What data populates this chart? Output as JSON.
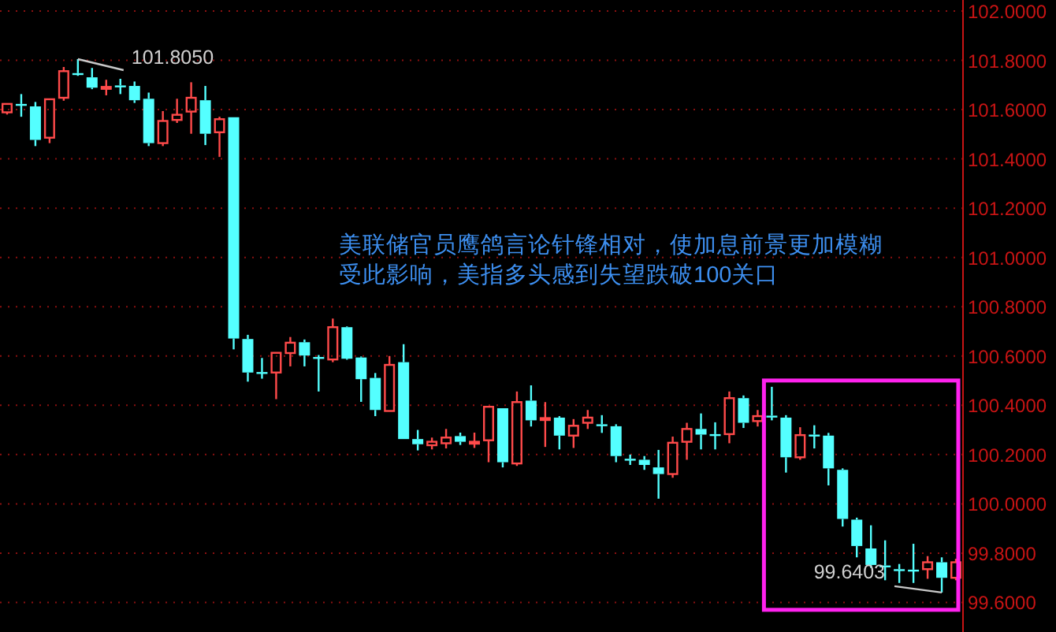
{
  "chart_data": {
    "type": "candlestick",
    "categories": [
      null,
      null,
      null,
      null,
      null,
      null,
      null,
      null,
      null,
      null,
      null,
      null,
      null,
      null,
      null,
      null,
      null,
      null,
      null,
      null,
      null,
      null,
      null,
      null,
      null,
      null,
      null,
      null,
      null,
      null,
      null,
      null,
      null,
      null,
      null,
      null,
      null,
      null,
      null,
      null,
      null,
      null,
      null,
      null,
      null,
      null,
      null,
      null,
      null,
      null,
      null,
      null,
      null,
      null,
      null,
      null,
      null,
      null,
      null,
      null,
      null,
      null,
      null,
      null,
      null,
      null,
      null,
      null
    ],
    "ohlc": [
      [
        101.589,
        101.623,
        101.58,
        101.623
      ],
      [
        101.623,
        101.663,
        101.571,
        101.62
      ],
      [
        101.613,
        101.631,
        101.452,
        101.477
      ],
      [
        101.486,
        101.642,
        101.464,
        101.642
      ],
      [
        101.648,
        101.773,
        101.636,
        101.756
      ],
      [
        101.748,
        101.805,
        101.737,
        101.742
      ],
      [
        101.731,
        101.769,
        101.683,
        101.689
      ],
      [
        101.688,
        101.721,
        101.658,
        101.692
      ],
      [
        101.698,
        101.725,
        101.663,
        101.693
      ],
      [
        101.696,
        101.714,
        101.627,
        101.638
      ],
      [
        101.644,
        101.669,
        101.452,
        101.464
      ],
      [
        101.464,
        101.594,
        101.452,
        101.554
      ],
      [
        101.558,
        101.644,
        101.546,
        101.579
      ],
      [
        101.592,
        101.711,
        101.502,
        101.648
      ],
      [
        101.638,
        101.696,
        101.456,
        101.502
      ],
      [
        101.508,
        101.571,
        101.408,
        101.561
      ],
      [
        101.569,
        101.569,
        100.627,
        100.671
      ],
      [
        100.669,
        100.686,
        100.496,
        100.533
      ],
      [
        100.535,
        100.592,
        100.508,
        100.531
      ],
      [
        100.533,
        100.613,
        100.425,
        100.613
      ],
      [
        100.612,
        100.677,
        100.558,
        100.654
      ],
      [
        100.656,
        100.667,
        100.558,
        100.602
      ],
      [
        100.596,
        100.604,
        100.456,
        100.592
      ],
      [
        100.586,
        100.752,
        100.575,
        100.717
      ],
      [
        100.717,
        100.72,
        100.585,
        100.589
      ],
      [
        100.594,
        100.598,
        100.414,
        100.506
      ],
      [
        100.511,
        100.531,
        100.356,
        100.381
      ],
      [
        100.377,
        100.6,
        100.377,
        100.564
      ],
      [
        100.575,
        100.648,
        100.263,
        100.263
      ],
      [
        100.263,
        100.3,
        100.217,
        100.242
      ],
      [
        100.238,
        100.269,
        100.221,
        100.252
      ],
      [
        100.246,
        100.304,
        100.225,
        100.269
      ],
      [
        100.275,
        100.289,
        100.239,
        100.252
      ],
      [
        100.248,
        100.289,
        100.227,
        100.252
      ],
      [
        100.258,
        100.394,
        100.169,
        100.394
      ],
      [
        100.388,
        100.388,
        100.148,
        100.169
      ],
      [
        100.164,
        100.456,
        100.154,
        100.413
      ],
      [
        100.419,
        100.481,
        100.314,
        100.339
      ],
      [
        100.343,
        100.413,
        100.231,
        100.348
      ],
      [
        100.35,
        100.356,
        100.221,
        100.277
      ],
      [
        100.277,
        100.344,
        100.227,
        100.317
      ],
      [
        100.329,
        100.381,
        100.304,
        100.35
      ],
      [
        100.323,
        100.36,
        100.288,
        100.319
      ],
      [
        100.315,
        100.323,
        100.169,
        100.194
      ],
      [
        100.183,
        100.2,
        100.158,
        100.179
      ],
      [
        100.179,
        100.194,
        100.138,
        100.158
      ],
      [
        100.148,
        100.219,
        100.021,
        100.121
      ],
      [
        100.121,
        100.273,
        100.106,
        100.248
      ],
      [
        100.252,
        100.329,
        100.179,
        100.304
      ],
      [
        100.304,
        100.367,
        100.221,
        100.281
      ],
      [
        100.283,
        100.331,
        100.221,
        100.279
      ],
      [
        100.283,
        100.456,
        100.246,
        100.429
      ],
      [
        100.429,
        100.44,
        100.308,
        100.329
      ],
      [
        100.336,
        100.381,
        100.314,
        100.356
      ],
      [
        100.358,
        100.475,
        100.339,
        100.352
      ],
      [
        100.35,
        100.36,
        100.127,
        100.189
      ],
      [
        100.189,
        100.311,
        100.179,
        100.279
      ],
      [
        100.281,
        100.319,
        100.225,
        100.277
      ],
      [
        100.277,
        100.288,
        100.075,
        100.144
      ],
      [
        100.138,
        100.144,
        99.908,
        99.939
      ],
      [
        99.936,
        99.944,
        99.783,
        99.829
      ],
      [
        99.819,
        99.913,
        99.74,
        99.752
      ],
      [
        99.75,
        99.852,
        99.69,
        99.746
      ],
      [
        99.735,
        99.756,
        99.679,
        99.731
      ],
      [
        99.733,
        99.838,
        99.679,
        99.729
      ],
      [
        99.735,
        99.788,
        99.696,
        99.763
      ],
      [
        99.763,
        99.783,
        99.6403,
        99.7
      ],
      [
        99.7,
        99.777,
        99.69,
        99.763
      ]
    ],
    "ylim": [
      99.48,
      102.0
    ],
    "yticks": [
      {
        "value": 99.6,
        "label": "99.6000"
      },
      {
        "value": 99.8,
        "label": "99.8000"
      },
      {
        "value": 100.0,
        "label": "100.0000"
      },
      {
        "value": 100.2,
        "label": "100.2000"
      },
      {
        "value": 100.4,
        "label": "100.4000"
      },
      {
        "value": 100.6,
        "label": "100.6000"
      },
      {
        "value": 100.8,
        "label": "100.8000"
      },
      {
        "value": 101.0,
        "label": "101.0000"
      },
      {
        "value": 101.2,
        "label": "101.2000"
      },
      {
        "value": 101.4,
        "label": "101.4000"
      },
      {
        "value": 101.6,
        "label": "101.6000"
      },
      {
        "value": 101.8,
        "label": "101.8000"
      },
      {
        "value": 102.0,
        "label": "102.0000"
      }
    ],
    "grid": "y",
    "annotations": [
      "美联储官员鹰鸽言论针锋相对，使加息前景更加模糊",
      "受此影响，美指多头感到失望跌破100关口",
      "101.8050",
      "99.6403"
    ]
  }
}
